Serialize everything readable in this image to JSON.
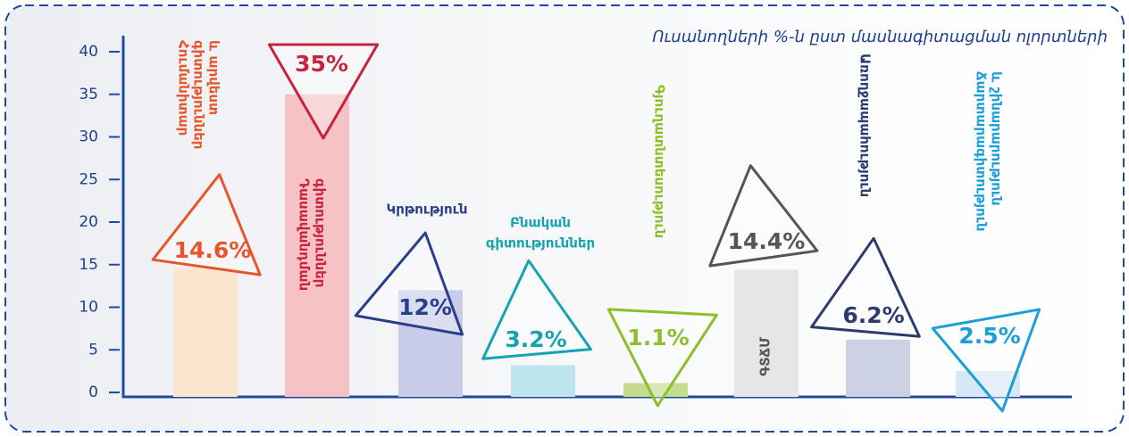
{
  "chart_data": {
    "type": "bar",
    "title": "Ուսանողների %-ն ըստ մասնագիտացման ոլորտների",
    "categories": [
      [
        "Հումանիտար",
        "գիտություններ",
        "և արվեստ"
      ],
      [
        "Դասավանդման",
        "գիտություններ"
      ],
      [
        "Կրթություն"
      ],
      [
        "Բնական",
        "գիտություններ"
      ],
      [
        "Գյուղատնտեսություն"
      ],
      [
        "ԳՏՃՄ"
      ],
      [
        "Առողջապահություն"
      ],
      [
        "Ճարտարագիտություն",
        "և շինարարություն"
      ]
    ],
    "values": [
      14.6,
      35,
      12,
      3.2,
      1.1,
      14.4,
      6.2,
      2.5
    ],
    "value_labels": [
      "14.6%",
      "35%",
      "12%",
      "3.2%",
      "1.1%",
      "14.4%",
      "6.2%",
      "2.5%"
    ],
    "colors": [
      "#fde6cf",
      "#f6c2c5",
      "#c8cce9",
      "#bde5eb",
      "#c4dc8c",
      "#e6e6e8",
      "#cdd1e4",
      "#d6e7f6"
    ],
    "label_colors": [
      "#e8552a",
      "#c8233b",
      "#2a3f8a",
      "#16a3b0",
      "#8cbf2a",
      "#555555",
      "#2e3a6e",
      "#1a9fd8"
    ],
    "ylim": [
      0,
      40
    ],
    "yticks": [
      0,
      5,
      10,
      15,
      20,
      25,
      30,
      35,
      40
    ]
  }
}
